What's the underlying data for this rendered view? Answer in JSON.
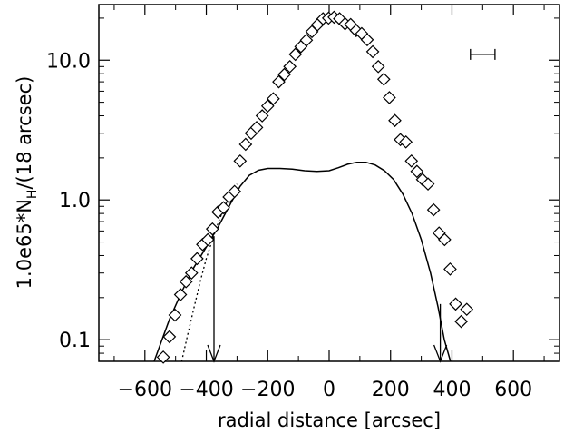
{
  "chart_data": {
    "type": "scatter",
    "xlabel": "radial distance [arcsec]",
    "ylabel_main": "1.0e65*N",
    "ylabel_sub": "H",
    "ylabel_tail": "/(18 arcsec)",
    "xlim": [
      -750,
      750
    ],
    "ylim": [
      0.07,
      25
    ],
    "yscale": "log",
    "grid": false,
    "x_ticks": [
      -600,
      -400,
      -200,
      0,
      200,
      400,
      600
    ],
    "x_tick_labels": [
      "−600",
      "−400",
      "−200",
      "0",
      "200",
      "400",
      "600"
    ],
    "y_ticks": [
      0.1,
      1.0,
      10.0
    ],
    "y_tick_labels": [
      "0.1",
      "1.0",
      "10.0"
    ],
    "markers": {
      "symbol": "diamond",
      "points": [
        {
          "x": -540,
          "y": 0.075
        },
        {
          "x": -520,
          "y": 0.105
        },
        {
          "x": -502,
          "y": 0.15
        },
        {
          "x": -484,
          "y": 0.21
        },
        {
          "x": -466,
          "y": 0.26
        },
        {
          "x": -448,
          "y": 0.3
        },
        {
          "x": -430,
          "y": 0.38
        },
        {
          "x": -412,
          "y": 0.48
        },
        {
          "x": -395,
          "y": 0.52
        },
        {
          "x": -380,
          "y": 0.62
        },
        {
          "x": -362,
          "y": 0.82
        },
        {
          "x": -344,
          "y": 0.88
        },
        {
          "x": -326,
          "y": 1.05
        },
        {
          "x": -308,
          "y": 1.15
        },
        {
          "x": -290,
          "y": 1.9
        },
        {
          "x": -272,
          "y": 2.5
        },
        {
          "x": -254,
          "y": 3.0
        },
        {
          "x": -236,
          "y": 3.3
        },
        {
          "x": -218,
          "y": 4.0
        },
        {
          "x": -200,
          "y": 4.7
        },
        {
          "x": -182,
          "y": 5.3
        },
        {
          "x": -164,
          "y": 7.0
        },
        {
          "x": -146,
          "y": 7.9
        },
        {
          "x": -128,
          "y": 9.0
        },
        {
          "x": -110,
          "y": 11.0
        },
        {
          "x": -92,
          "y": 12.5
        },
        {
          "x": -74,
          "y": 13.9
        },
        {
          "x": -56,
          "y": 16.0
        },
        {
          "x": -38,
          "y": 17.9
        },
        {
          "x": -20,
          "y": 19.8
        },
        {
          "x": -2,
          "y": 20.0
        },
        {
          "x": 16,
          "y": 20.3
        },
        {
          "x": 34,
          "y": 19.8
        },
        {
          "x": 52,
          "y": 18.2
        },
        {
          "x": 70,
          "y": 18.0
        },
        {
          "x": 88,
          "y": 16.3
        },
        {
          "x": 106,
          "y": 15.5
        },
        {
          "x": 124,
          "y": 14.0
        },
        {
          "x": 142,
          "y": 11.5
        },
        {
          "x": 160,
          "y": 9.0
        },
        {
          "x": 178,
          "y": 7.3
        },
        {
          "x": 196,
          "y": 5.4
        },
        {
          "x": 214,
          "y": 3.7
        },
        {
          "x": 232,
          "y": 2.7
        },
        {
          "x": 250,
          "y": 2.6
        },
        {
          "x": 268,
          "y": 1.9
        },
        {
          "x": 286,
          "y": 1.6
        },
        {
          "x": 304,
          "y": 1.4
        },
        {
          "x": 322,
          "y": 1.3
        },
        {
          "x": 340,
          "y": 0.85
        },
        {
          "x": 358,
          "y": 0.58
        },
        {
          "x": 376,
          "y": 0.52
        },
        {
          "x": 394,
          "y": 0.32
        },
        {
          "x": 412,
          "y": 0.18
        },
        {
          "x": 430,
          "y": 0.135
        },
        {
          "x": 448,
          "y": 0.165
        }
      ]
    },
    "solid_curve": [
      [
        -570,
        0.07
      ],
      [
        -520,
        0.14
      ],
      [
        -480,
        0.22
      ],
      [
        -440,
        0.33
      ],
      [
        -400,
        0.46
      ],
      [
        -360,
        0.65
      ],
      [
        -320,
        0.95
      ],
      [
        -290,
        1.25
      ],
      [
        -260,
        1.5
      ],
      [
        -230,
        1.63
      ],
      [
        -200,
        1.68
      ],
      [
        -160,
        1.68
      ],
      [
        -120,
        1.66
      ],
      [
        -80,
        1.62
      ],
      [
        -40,
        1.6
      ],
      [
        0,
        1.62
      ],
      [
        30,
        1.7
      ],
      [
        60,
        1.8
      ],
      [
        90,
        1.86
      ],
      [
        120,
        1.86
      ],
      [
        150,
        1.78
      ],
      [
        180,
        1.62
      ],
      [
        210,
        1.4
      ],
      [
        240,
        1.1
      ],
      [
        270,
        0.8
      ],
      [
        300,
        0.52
      ],
      [
        330,
        0.3
      ],
      [
        355,
        0.17
      ],
      [
        375,
        0.1
      ],
      [
        395,
        0.07
      ]
    ],
    "dotted_curve": [
      [
        -480,
        0.07
      ],
      [
        -460,
        0.11
      ],
      [
        -440,
        0.17
      ],
      [
        -420,
        0.26
      ],
      [
        -400,
        0.38
      ],
      [
        -380,
        0.52
      ],
      [
        -360,
        0.7
      ],
      [
        -340,
        0.9
      ],
      [
        -320,
        1.1
      ],
      [
        -300,
        1.3
      ]
    ],
    "arrows": [
      {
        "x": -375,
        "y_top": 0.55,
        "y_bottom": 0.07
      },
      {
        "x": 362,
        "y_top": 0.18,
        "y_bottom": 0.07
      }
    ],
    "error_bar": {
      "x_left": 460,
      "x_right": 540,
      "y": 11.0
    }
  }
}
